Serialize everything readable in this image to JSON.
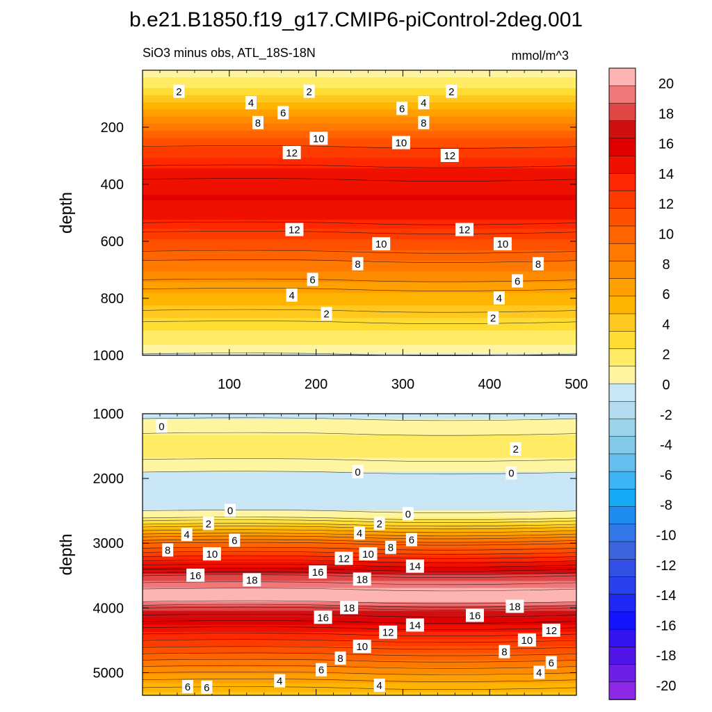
{
  "title": "b.e21.B1850.f19_g17.CMIP6-piControl-2deg.001",
  "subtitle_left": "SiO3 minus obs, ATL_18S-18N",
  "units": "mmol/m^3",
  "colorbar": {
    "levels": [
      -20,
      -18,
      -16,
      -14,
      -12,
      -10,
      -8,
      -6,
      -4,
      -2,
      0,
      2,
      4,
      6,
      8,
      10,
      12,
      14,
      16,
      18,
      20
    ],
    "labels": [
      "20",
      "18",
      "16",
      "14",
      "12",
      "10",
      "8",
      "6",
      "4",
      "2",
      "0",
      "-2",
      "-4",
      "-6",
      "-8",
      "-10",
      "-12",
      "-14",
      "-16",
      "-18",
      "-20"
    ],
    "colors": [
      "#ffb4b4",
      "#f07878",
      "#e04646",
      "#d01010",
      "#e00000",
      "#f01000",
      "#ff2800",
      "#ff3c00",
      "#ff5000",
      "#ff6400",
      "#ff7800",
      "#ff8c00",
      "#ffa000",
      "#ffb400",
      "#ffc81e",
      "#ffdc32",
      "#ffeb64",
      "#fff5a0",
      "#c8e6f5",
      "#b4dcf0",
      "#9bd2ec",
      "#82c8e8",
      "#64bef0",
      "#3cb4f5",
      "#14aaf5",
      "#1e8cf0",
      "#3278e6",
      "#3c64dc",
      "#3250e6",
      "#2840f0",
      "#1e28f5",
      "#1414ff",
      "#3214f0",
      "#5014e6",
      "#6e1ee6",
      "#8c28e6"
    ]
  },
  "chart_data": [
    {
      "type": "contour",
      "panel": "upper",
      "ylabel": "depth",
      "xlim": [
        0,
        500
      ],
      "ylim": [
        1000,
        0
      ],
      "xticks": [
        "100",
        "200",
        "300",
        "400",
        "500"
      ],
      "yticks": [
        "200",
        "400",
        "600",
        "800",
        "1000"
      ],
      "profile_depths": [
        0,
        20,
        40,
        60,
        70,
        100,
        150,
        200,
        250,
        300,
        350,
        400,
        450,
        500,
        550,
        600,
        650,
        700,
        750,
        800,
        850,
        900,
        950,
        975,
        1000
      ],
      "profile_values": [
        0.5,
        1,
        1.8,
        2.2,
        2.5,
        4,
        6,
        8.5,
        10.5,
        12,
        13.5,
        14.3,
        14.5,
        14,
        12.5,
        11,
        9.5,
        8,
        6.5,
        5,
        3.8,
        2.5,
        1.5,
        0.5,
        -0.2
      ],
      "contour_labels": [
        {
          "text": "2",
          "x": 42,
          "y": 75
        },
        {
          "text": "4",
          "x": 125,
          "y": 115
        },
        {
          "text": "6",
          "x": 162,
          "y": 150
        },
        {
          "text": "8",
          "x": 133,
          "y": 185
        },
        {
          "text": "10",
          "x": 203,
          "y": 240
        },
        {
          "text": "12",
          "x": 172,
          "y": 290
        },
        {
          "text": "2",
          "x": 192,
          "y": 75
        },
        {
          "text": "6",
          "x": 299,
          "y": 135
        },
        {
          "text": "4",
          "x": 324,
          "y": 115
        },
        {
          "text": "2",
          "x": 356,
          "y": 75
        },
        {
          "text": "8",
          "x": 324,
          "y": 185
        },
        {
          "text": "10",
          "x": 298,
          "y": 255
        },
        {
          "text": "12",
          "x": 354,
          "y": 300
        },
        {
          "text": "12",
          "x": 175,
          "y": 560
        },
        {
          "text": "12",
          "x": 371,
          "y": 560
        },
        {
          "text": "10",
          "x": 275,
          "y": 610
        },
        {
          "text": "10",
          "x": 415,
          "y": 610
        },
        {
          "text": "8",
          "x": 248,
          "y": 680
        },
        {
          "text": "8",
          "x": 456,
          "y": 680
        },
        {
          "text": "6",
          "x": 196,
          "y": 735
        },
        {
          "text": "6",
          "x": 432,
          "y": 740
        },
        {
          "text": "4",
          "x": 172,
          "y": 790
        },
        {
          "text": "4",
          "x": 411,
          "y": 800
        },
        {
          "text": "2",
          "x": 212,
          "y": 855
        },
        {
          "text": "2",
          "x": 404,
          "y": 870
        }
      ]
    },
    {
      "type": "contour",
      "panel": "lower",
      "ylabel": "depth",
      "xlim": [
        0,
        500
      ],
      "ylim": [
        5350,
        1000
      ],
      "yticks": [
        "1000",
        "2000",
        "3000",
        "4000",
        "5000"
      ],
      "profile_depths": [
        1000,
        1200,
        1400,
        1500,
        1600,
        1800,
        2000,
        2200,
        2300,
        2500,
        2600,
        2700,
        2800,
        2900,
        3000,
        3200,
        3400,
        3500,
        3600,
        3700,
        3800,
        3900,
        4000,
        4100,
        4300,
        4500,
        4700,
        4900,
        5100,
        5350
      ],
      "profile_values": [
        -0.3,
        0.5,
        1.5,
        2,
        1.5,
        0.5,
        -0.5,
        -1,
        -0.5,
        0,
        1,
        3,
        5,
        7,
        9,
        12,
        15,
        17,
        18,
        19,
        19.5,
        19,
        17,
        16,
        14,
        12,
        10,
        8,
        6,
        4
      ],
      "contour_labels": [
        {
          "text": "0",
          "x": 22,
          "y": 1200
        },
        {
          "text": "2",
          "x": 430,
          "y": 1550
        },
        {
          "text": "0",
          "x": 248,
          "y": 1900
        },
        {
          "text": "0",
          "x": 425,
          "y": 1920
        },
        {
          "text": "0",
          "x": 101,
          "y": 2500
        },
        {
          "text": "2",
          "x": 76,
          "y": 2700
        },
        {
          "text": "2",
          "x": 273,
          "y": 2700
        },
        {
          "text": "0",
          "x": 306,
          "y": 2550
        },
        {
          "text": "4",
          "x": 51,
          "y": 2870
        },
        {
          "text": "4",
          "x": 250,
          "y": 2850
        },
        {
          "text": "6",
          "x": 106,
          "y": 2960
        },
        {
          "text": "6",
          "x": 310,
          "y": 2950
        },
        {
          "text": "8",
          "x": 29,
          "y": 3110
        },
        {
          "text": "8",
          "x": 286,
          "y": 3070
        },
        {
          "text": "10",
          "x": 80,
          "y": 3170
        },
        {
          "text": "10",
          "x": 260,
          "y": 3170
        },
        {
          "text": "12",
          "x": 232,
          "y": 3240
        },
        {
          "text": "14",
          "x": 314,
          "y": 3360
        },
        {
          "text": "16",
          "x": 61,
          "y": 3500
        },
        {
          "text": "16",
          "x": 202,
          "y": 3450
        },
        {
          "text": "18",
          "x": 126,
          "y": 3570
        },
        {
          "text": "18",
          "x": 253,
          "y": 3560
        },
        {
          "text": "18",
          "x": 238,
          "y": 4000
        },
        {
          "text": "18",
          "x": 429,
          "y": 3980
        },
        {
          "text": "16",
          "x": 208,
          "y": 4150
        },
        {
          "text": "16",
          "x": 383,
          "y": 4120
        },
        {
          "text": "14",
          "x": 314,
          "y": 4270
        },
        {
          "text": "12",
          "x": 283,
          "y": 4380
        },
        {
          "text": "12",
          "x": 471,
          "y": 4350
        },
        {
          "text": "10",
          "x": 253,
          "y": 4600
        },
        {
          "text": "10",
          "x": 443,
          "y": 4500
        },
        {
          "text": "8",
          "x": 228,
          "y": 4780
        },
        {
          "text": "8",
          "x": 417,
          "y": 4680
        },
        {
          "text": "6",
          "x": 206,
          "y": 4960
        },
        {
          "text": "6",
          "x": 471,
          "y": 4850
        },
        {
          "text": "4",
          "x": 158,
          "y": 5130
        },
        {
          "text": "4",
          "x": 457,
          "y": 5000
        },
        {
          "text": "4",
          "x": 273,
          "y": 5200
        },
        {
          "text": "6",
          "x": 52,
          "y": 5220
        },
        {
          "text": "6",
          "x": 74,
          "y": 5230
        }
      ]
    }
  ]
}
